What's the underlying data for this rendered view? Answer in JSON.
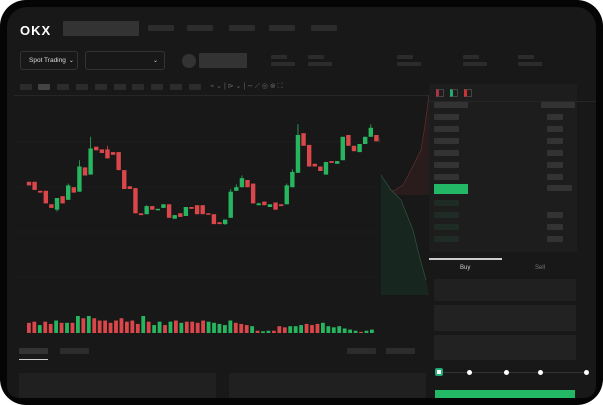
{
  "brand": {
    "logo_text": "OKX"
  },
  "toolbar": {
    "market_select": "Spot Trading",
    "market_chevron": "chevron-down-icon",
    "pair_chevron": "chevron-down-icon"
  },
  "orderbook": {
    "view_icons": [
      "orderbook-both-icon",
      "orderbook-buy-icon",
      "orderbook-sell-icon"
    ]
  },
  "trade": {
    "tabs": [
      {
        "label": "Buy",
        "active": true
      },
      {
        "label": "Sell",
        "active": false
      }
    ],
    "leverage_slider": {
      "value": 0,
      "stops": 5
    }
  },
  "colors": {
    "up": "#27b560",
    "down": "#d9474a",
    "accent": "#22b865"
  },
  "chart_data": {
    "type": "candlestick",
    "ohlc": [
      [
        118,
        114,
        118,
        114
      ],
      [
        118,
        109,
        118,
        109
      ],
      [
        108,
        106,
        108,
        106
      ],
      [
        108,
        94,
        108,
        94
      ],
      [
        93,
        89,
        93,
        89
      ],
      [
        87,
        100,
        100,
        85
      ],
      [
        102,
        94,
        102,
        94
      ],
      [
        98,
        114,
        116,
        98
      ],
      [
        112,
        106,
        112,
        106
      ],
      [
        107,
        135,
        142,
        107
      ],
      [
        134,
        125,
        134,
        125
      ],
      [
        126,
        155,
        168,
        126
      ],
      [
        157,
        153,
        157,
        153
      ],
      [
        154,
        150,
        154,
        150
      ],
      [
        154,
        144,
        158,
        144
      ],
      [
        151,
        148,
        151,
        148
      ],
      [
        151,
        131,
        151,
        131
      ],
      [
        131,
        110,
        131,
        110
      ],
      [
        113,
        110,
        113,
        110
      ],
      [
        111,
        83,
        111,
        83
      ],
      [
        83,
        81,
        83,
        81
      ],
      [
        82,
        91,
        92,
        82
      ],
      [
        91,
        87,
        91,
        87
      ],
      [
        87,
        88,
        88,
        87
      ],
      [
        89,
        93,
        93,
        89
      ],
      [
        93,
        78,
        93,
        78
      ],
      [
        77,
        81,
        81,
        77
      ],
      [
        83,
        79,
        83,
        79
      ],
      [
        80,
        90,
        90,
        80
      ],
      [
        90,
        88,
        90,
        88
      ],
      [
        92,
        82,
        92,
        82
      ],
      [
        92,
        82,
        92,
        82
      ],
      [
        83,
        82,
        83,
        82
      ],
      [
        82,
        71,
        82,
        71
      ],
      [
        73,
        71,
        73,
        71
      ],
      [
        71,
        76,
        76,
        70
      ],
      [
        78,
        107,
        110,
        78
      ],
      [
        108,
        112,
        115,
        108
      ],
      [
        112,
        122,
        125,
        112
      ],
      [
        120,
        112,
        120,
        112
      ],
      [
        116,
        94,
        116,
        94
      ],
      [
        92,
        94,
        95,
        92
      ],
      [
        96,
        92,
        96,
        92
      ],
      [
        90,
        93,
        93,
        90
      ],
      [
        95,
        87,
        95,
        87
      ],
      [
        93,
        91,
        93,
        91
      ],
      [
        93,
        114,
        116,
        93
      ],
      [
        112,
        129,
        132,
        112
      ],
      [
        128,
        170,
        182,
        128
      ],
      [
        172,
        158,
        172,
        158
      ],
      [
        159,
        135,
        159,
        135
      ],
      [
        138,
        135,
        138,
        135
      ],
      [
        135,
        130,
        135,
        130
      ],
      [
        126,
        140,
        140,
        126
      ],
      [
        141,
        139,
        141,
        139
      ],
      [
        138,
        141,
        141,
        138
      ],
      [
        142,
        168,
        168,
        142
      ],
      [
        170,
        158,
        170,
        158
      ],
      [
        158,
        152,
        158,
        152
      ],
      [
        151,
        160,
        160,
        151
      ],
      [
        160,
        168,
        168,
        160
      ],
      [
        168,
        178,
        182,
        168
      ],
      [
        170,
        163,
        170,
        163
      ],
      [
        161,
        167,
        167,
        161
      ]
    ],
    "volume": [
      9,
      10,
      7,
      10,
      8,
      11,
      9,
      9,
      9,
      15,
      13,
      15,
      13,
      11,
      11,
      9,
      11,
      13,
      10,
      11,
      8,
      15,
      10,
      7,
      10,
      7,
      10,
      11,
      9,
      10,
      10,
      9,
      11,
      10,
      9,
      8,
      7,
      11,
      9,
      8,
      7,
      6,
      2,
      1.5,
      2,
      2,
      6,
      5,
      6,
      6,
      7,
      8,
      7,
      8,
      9,
      6,
      5,
      6,
      4,
      3,
      2,
      1,
      2,
      3
    ],
    "volume_up": [
      false,
      false,
      true,
      false,
      false,
      true,
      false,
      true,
      false,
      true,
      false,
      true,
      false,
      false,
      false,
      false,
      false,
      false,
      false,
      false,
      false,
      true,
      false,
      true,
      true,
      false,
      true,
      false,
      true,
      false,
      false,
      false,
      false,
      true,
      true,
      true,
      true,
      true,
      false,
      false,
      false,
      true,
      false,
      true,
      true,
      false,
      false,
      false,
      true,
      true,
      true,
      false,
      false,
      false,
      true,
      true,
      true,
      true,
      true,
      true,
      true,
      false,
      true,
      true
    ]
  }
}
